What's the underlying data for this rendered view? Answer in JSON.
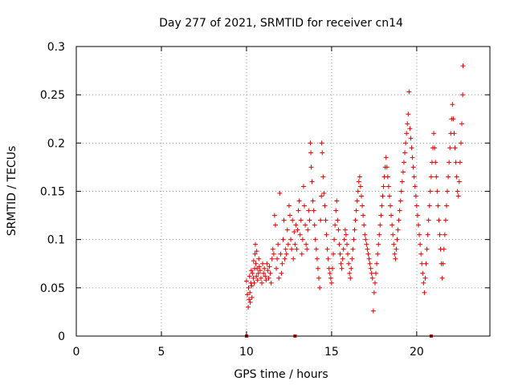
{
  "chart_data": {
    "type": "scatter",
    "title": "Day 277 of 2021, SRMTID for receiver cn14",
    "xlabel": "GPS time / hours",
    "ylabel": "SRMTID / TECUs",
    "xlim": [
      0,
      24.3
    ],
    "ylim": [
      0,
      0.3
    ],
    "xticks": [
      0,
      5,
      10,
      15,
      20
    ],
    "xtick_labels": [
      "0",
      "5",
      "10",
      "15",
      "20"
    ],
    "yticks": [
      0,
      0.05,
      0.1,
      0.15,
      0.2,
      0.25,
      0.3
    ],
    "ytick_labels": [
      "0",
      "0.05",
      "0.1",
      "0.15",
      "0.2",
      "0.25",
      "0.3"
    ],
    "grid": true,
    "marker": "+",
    "series": [
      {
        "name": "SRMTID",
        "color": "#e00000",
        "points": [
          [
            10.0,
            0.057
          ],
          [
            10.05,
            0.043
          ],
          [
            10.1,
            0.03
          ],
          [
            10.12,
            0.05
          ],
          [
            10.15,
            0.038
          ],
          [
            10.18,
            0.062
          ],
          [
            10.2,
            0.045
          ],
          [
            10.22,
            0.035
          ],
          [
            10.25,
            0.055
          ],
          [
            10.28,
            0.068
          ],
          [
            10.3,
            0.052
          ],
          [
            10.32,
            0.04
          ],
          [
            10.35,
            0.065
          ],
          [
            10.4,
            0.06
          ],
          [
            10.42,
            0.078
          ],
          [
            10.45,
            0.055
          ],
          [
            10.48,
            0.07
          ],
          [
            10.5,
            0.085
          ],
          [
            10.52,
            0.095
          ],
          [
            10.55,
            0.075
          ],
          [
            10.58,
            0.062
          ],
          [
            10.6,
            0.088
          ],
          [
            10.62,
            0.07
          ],
          [
            10.65,
            0.058
          ],
          [
            10.7,
            0.065
          ],
          [
            10.72,
            0.08
          ],
          [
            10.75,
            0.072
          ],
          [
            10.8,
            0.068
          ],
          [
            10.85,
            0.06
          ],
          [
            10.9,
            0.055
          ],
          [
            10.95,
            0.075
          ],
          [
            11.0,
            0.065
          ],
          [
            11.05,
            0.07
          ],
          [
            11.1,
            0.062
          ],
          [
            11.15,
            0.058
          ],
          [
            11.2,
            0.075
          ],
          [
            11.25,
            0.068
          ],
          [
            11.3,
            0.06
          ],
          [
            11.35,
            0.072
          ],
          [
            11.4,
            0.065
          ],
          [
            11.45,
            0.055
          ],
          [
            11.5,
            0.08
          ],
          [
            11.55,
            0.09
          ],
          [
            11.6,
            0.085
          ],
          [
            11.65,
            0.125
          ],
          [
            11.7,
            0.115
          ],
          [
            11.75,
            0.07
          ],
          [
            11.8,
            0.08
          ],
          [
            11.85,
            0.095
          ],
          [
            11.9,
            0.06
          ],
          [
            11.95,
            0.148
          ],
          [
            12.0,
            0.085
          ],
          [
            12.05,
            0.065
          ],
          [
            12.1,
            0.075
          ],
          [
            12.15,
            0.1
          ],
          [
            12.2,
            0.12
          ],
          [
            12.25,
            0.08
          ],
          [
            12.3,
            0.09
          ],
          [
            12.35,
            0.085
          ],
          [
            12.4,
            0.11
          ],
          [
            12.45,
            0.095
          ],
          [
            12.5,
            0.135
          ],
          [
            12.55,
            0.125
          ],
          [
            12.6,
            0.1
          ],
          [
            12.65,
            0.09
          ],
          [
            12.7,
            0.12
          ],
          [
            12.75,
            0.08
          ],
          [
            12.8,
            0.108
          ],
          [
            12.85,
            0.095
          ],
          [
            12.9,
            0.115
          ],
          [
            12.95,
            0.09
          ],
          [
            13.0,
            0.11
          ],
          [
            13.05,
            0.13
          ],
          [
            13.1,
            0.14
          ],
          [
            13.15,
            0.105
          ],
          [
            13.2,
            0.12
          ],
          [
            13.25,
            0.085
          ],
          [
            13.3,
            0.1
          ],
          [
            13.35,
            0.155
          ],
          [
            13.4,
            0.135
          ],
          [
            13.45,
            0.115
          ],
          [
            13.5,
            0.095
          ],
          [
            13.55,
            0.09
          ],
          [
            13.6,
            0.11
          ],
          [
            13.65,
            0.13
          ],
          [
            13.7,
            0.12
          ],
          [
            13.75,
            0.2
          ],
          [
            13.78,
            0.19
          ],
          [
            13.8,
            0.175
          ],
          [
            13.85,
            0.16
          ],
          [
            13.9,
            0.14
          ],
          [
            13.95,
            0.13
          ],
          [
            14.0,
            0.115
          ],
          [
            14.05,
            0.1
          ],
          [
            14.1,
            0.09
          ],
          [
            14.15,
            0.08
          ],
          [
            14.2,
            0.07
          ],
          [
            14.25,
            0.06
          ],
          [
            14.3,
            0.05
          ],
          [
            14.35,
            0.12
          ],
          [
            14.4,
            0.145
          ],
          [
            14.42,
            0.2
          ],
          [
            14.45,
            0.19
          ],
          [
            14.5,
            0.165
          ],
          [
            14.55,
            0.148
          ],
          [
            14.6,
            0.135
          ],
          [
            14.65,
            0.12
          ],
          [
            14.7,
            0.105
          ],
          [
            14.75,
            0.09
          ],
          [
            14.8,
            0.08
          ],
          [
            14.85,
            0.07
          ],
          [
            14.9,
            0.065
          ],
          [
            14.95,
            0.06
          ],
          [
            15.0,
            0.055
          ],
          [
            15.05,
            0.07
          ],
          [
            15.1,
            0.085
          ],
          [
            15.15,
            0.1
          ],
          [
            15.2,
            0.115
          ],
          [
            15.25,
            0.13
          ],
          [
            15.3,
            0.14
          ],
          [
            15.35,
            0.12
          ],
          [
            15.4,
            0.11
          ],
          [
            15.45,
            0.095
          ],
          [
            15.5,
            0.085
          ],
          [
            15.55,
            0.075
          ],
          [
            15.6,
            0.07
          ],
          [
            15.65,
            0.08
          ],
          [
            15.7,
            0.09
          ],
          [
            15.75,
            0.1
          ],
          [
            15.8,
            0.11
          ],
          [
            15.85,
            0.105
          ],
          [
            15.9,
            0.095
          ],
          [
            15.95,
            0.085
          ],
          [
            16.0,
            0.075
          ],
          [
            16.05,
            0.065
          ],
          [
            16.1,
            0.06
          ],
          [
            16.15,
            0.07
          ],
          [
            16.2,
            0.08
          ],
          [
            16.25,
            0.09
          ],
          [
            16.3,
            0.1
          ],
          [
            16.35,
            0.11
          ],
          [
            16.4,
            0.12
          ],
          [
            16.45,
            0.13
          ],
          [
            16.5,
            0.14
          ],
          [
            16.55,
            0.15
          ],
          [
            16.6,
            0.16
          ],
          [
            16.65,
            0.165
          ],
          [
            16.7,
            0.155
          ],
          [
            16.75,
            0.145
          ],
          [
            16.8,
            0.135
          ],
          [
            16.85,
            0.125
          ],
          [
            16.9,
            0.115
          ],
          [
            16.95,
            0.105
          ],
          [
            17.0,
            0.1
          ],
          [
            17.05,
            0.095
          ],
          [
            17.1,
            0.09
          ],
          [
            17.15,
            0.085
          ],
          [
            17.2,
            0.08
          ],
          [
            17.25,
            0.075
          ],
          [
            17.3,
            0.07
          ],
          [
            17.35,
            0.065
          ],
          [
            17.4,
            0.06
          ],
          [
            17.45,
            0.026
          ],
          [
            17.5,
            0.045
          ],
          [
            17.55,
            0.055
          ],
          [
            17.6,
            0.065
          ],
          [
            17.65,
            0.075
          ],
          [
            17.7,
            0.085
          ],
          [
            17.75,
            0.095
          ],
          [
            17.8,
            0.105
          ],
          [
            17.85,
            0.115
          ],
          [
            17.9,
            0.125
          ],
          [
            17.95,
            0.135
          ],
          [
            18.0,
            0.145
          ],
          [
            18.05,
            0.155
          ],
          [
            18.1,
            0.165
          ],
          [
            18.15,
            0.175
          ],
          [
            18.2,
            0.185
          ],
          [
            18.25,
            0.175
          ],
          [
            18.3,
            0.165
          ],
          [
            18.35,
            0.155
          ],
          [
            18.4,
            0.145
          ],
          [
            18.45,
            0.135
          ],
          [
            18.5,
            0.125
          ],
          [
            18.55,
            0.115
          ],
          [
            18.6,
            0.105
          ],
          [
            18.65,
            0.095
          ],
          [
            18.7,
            0.085
          ],
          [
            18.75,
            0.08
          ],
          [
            18.8,
            0.09
          ],
          [
            18.85,
            0.1
          ],
          [
            18.9,
            0.11
          ],
          [
            18.95,
            0.12
          ],
          [
            19.0,
            0.13
          ],
          [
            19.05,
            0.14
          ],
          [
            19.1,
            0.15
          ],
          [
            19.15,
            0.16
          ],
          [
            19.2,
            0.17
          ],
          [
            19.25,
            0.18
          ],
          [
            19.3,
            0.19
          ],
          [
            19.35,
            0.2
          ],
          [
            19.4,
            0.21
          ],
          [
            19.45,
            0.22
          ],
          [
            19.5,
            0.23
          ],
          [
            19.55,
            0.253
          ],
          [
            19.6,
            0.215
          ],
          [
            19.65,
            0.205
          ],
          [
            19.7,
            0.195
          ],
          [
            19.75,
            0.185
          ],
          [
            19.8,
            0.175
          ],
          [
            19.85,
            0.165
          ],
          [
            19.9,
            0.155
          ],
          [
            19.95,
            0.145
          ],
          [
            20.0,
            0.135
          ],
          [
            20.05,
            0.125
          ],
          [
            20.1,
            0.115
          ],
          [
            20.15,
            0.105
          ],
          [
            20.2,
            0.095
          ],
          [
            20.25,
            0.085
          ],
          [
            20.3,
            0.075
          ],
          [
            20.35,
            0.065
          ],
          [
            20.4,
            0.055
          ],
          [
            20.45,
            0.045
          ],
          [
            20.5,
            0.06
          ],
          [
            20.55,
            0.075
          ],
          [
            20.6,
            0.09
          ],
          [
            20.65,
            0.105
          ],
          [
            20.7,
            0.12
          ],
          [
            20.75,
            0.135
          ],
          [
            20.8,
            0.15
          ],
          [
            20.85,
            0.165
          ],
          [
            20.9,
            0.18
          ],
          [
            20.95,
            0.195
          ],
          [
            21.0,
            0.21
          ],
          [
            21.05,
            0.195
          ],
          [
            21.1,
            0.18
          ],
          [
            21.15,
            0.165
          ],
          [
            21.2,
            0.15
          ],
          [
            21.25,
            0.135
          ],
          [
            21.3,
            0.12
          ],
          [
            21.35,
            0.105
          ],
          [
            21.4,
            0.09
          ],
          [
            21.45,
            0.075
          ],
          [
            21.5,
            0.06
          ],
          [
            21.55,
            0.075
          ],
          [
            21.6,
            0.09
          ],
          [
            21.65,
            0.105
          ],
          [
            21.7,
            0.12
          ],
          [
            21.75,
            0.135
          ],
          [
            21.8,
            0.15
          ],
          [
            21.85,
            0.165
          ],
          [
            21.9,
            0.18
          ],
          [
            21.95,
            0.195
          ],
          [
            22.0,
            0.21
          ],
          [
            22.05,
            0.225
          ],
          [
            22.1,
            0.24
          ],
          [
            22.15,
            0.225
          ],
          [
            22.2,
            0.21
          ],
          [
            22.25,
            0.195
          ],
          [
            22.3,
            0.18
          ],
          [
            22.35,
            0.165
          ],
          [
            22.4,
            0.15
          ],
          [
            22.45,
            0.145
          ],
          [
            22.5,
            0.16
          ],
          [
            22.55,
            0.18
          ],
          [
            22.6,
            0.2
          ],
          [
            22.65,
            0.22
          ],
          [
            22.7,
            0.25
          ],
          [
            22.72,
            0.28
          ]
        ]
      }
    ],
    "xaxis_marks": [
      10.0,
      12.85,
      20.85
    ]
  }
}
